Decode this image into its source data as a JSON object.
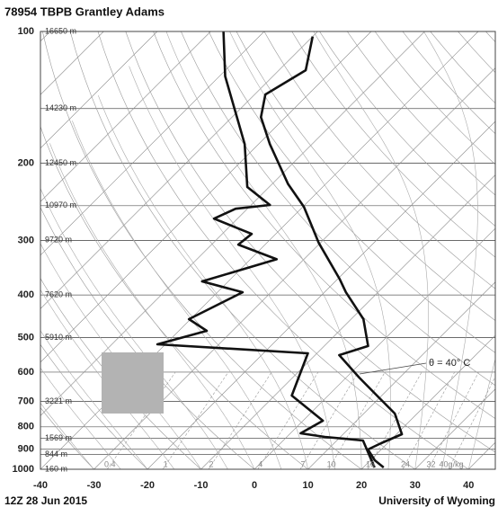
{
  "chart_data": {
    "type": "skewt",
    "title": "78954 TBPB Grantley Adams",
    "footer_left": "12Z 28 Jun 2015",
    "footer_right": "University of Wyoming",
    "annotation": "θ = 40° C",
    "log_y": true,
    "ylim": [
      1000,
      100
    ],
    "yticks": [
      100,
      200,
      300,
      400,
      500,
      600,
      700,
      800,
      900,
      1000
    ],
    "xlim": [
      -40,
      45
    ],
    "xticks": [
      -40,
      -30,
      -20,
      -10,
      0,
      10,
      20,
      30,
      40
    ],
    "height_levels": [
      {
        "pressure": 100,
        "label": "16650 m"
      },
      {
        "pressure": 150,
        "label": "14230 m"
      },
      {
        "pressure": 200,
        "label": "12450 m"
      },
      {
        "pressure": 250,
        "label": "10970 m"
      },
      {
        "pressure": 300,
        "label": "9720 m"
      },
      {
        "pressure": 400,
        "label": "7620 m"
      },
      {
        "pressure": 500,
        "label": "5910 m"
      },
      {
        "pressure": 700,
        "label": "3221 m"
      },
      {
        "pressure": 850,
        "label": "1569 m"
      },
      {
        "pressure": 925,
        "label": "844 m"
      },
      {
        "pressure": 1000,
        "label": "160 m"
      }
    ],
    "mixing_ratios": [
      0.4,
      1,
      2,
      4,
      7,
      10,
      16,
      24,
      32,
      {
        "value": 40,
        "label": "40g/kg"
      }
    ],
    "series": [
      {
        "name": "Temperature",
        "color": "#111111",
        "pressure": [
          990.6,
          953.8,
          901,
          871.9,
          831.7,
          746,
          678.6,
          617.1,
          548.5,
          523,
          454,
          394.1,
          367.2,
          304,
          251.5,
          223.2,
          180.8,
          156.9,
          139.3,
          122.6,
          102.7
        ],
        "values": [
          23.8,
          20.8,
          17.5,
          18.8,
          21,
          15.8,
          9.1,
          2.4,
          -5.5,
          -1.8,
          -7.7,
          -16,
          -19.7,
          -30.3,
          -39.8,
          -47,
          -57.9,
          -64.6,
          -68,
          -65,
          -70
        ]
      },
      {
        "name": "Dew point",
        "color": "#111111",
        "pressure": [
          990.6,
          859.7,
          843.6,
          827.7,
          774.6,
          678.6,
          543.3,
          518.2,
          482.8,
          454,
          394.1,
          372.3,
          331.4,
          306.8,
          290,
          267.6,
          254.1,
          249.1,
          226.6,
          180.8,
          126.6,
          100
        ],
        "values": [
          22.1,
          14.9,
          7.1,
          1.9,
          3.7,
          -6.8,
          -11.7,
          -41.5,
          -34.8,
          -40.3,
          -35.3,
          -44.9,
          -35.1,
          -45,
          -44.5,
          -54.4,
          -52.2,
          -46.5,
          -54.1,
          -62.6,
          -78.9,
          -87.6
        ]
      }
    ]
  }
}
